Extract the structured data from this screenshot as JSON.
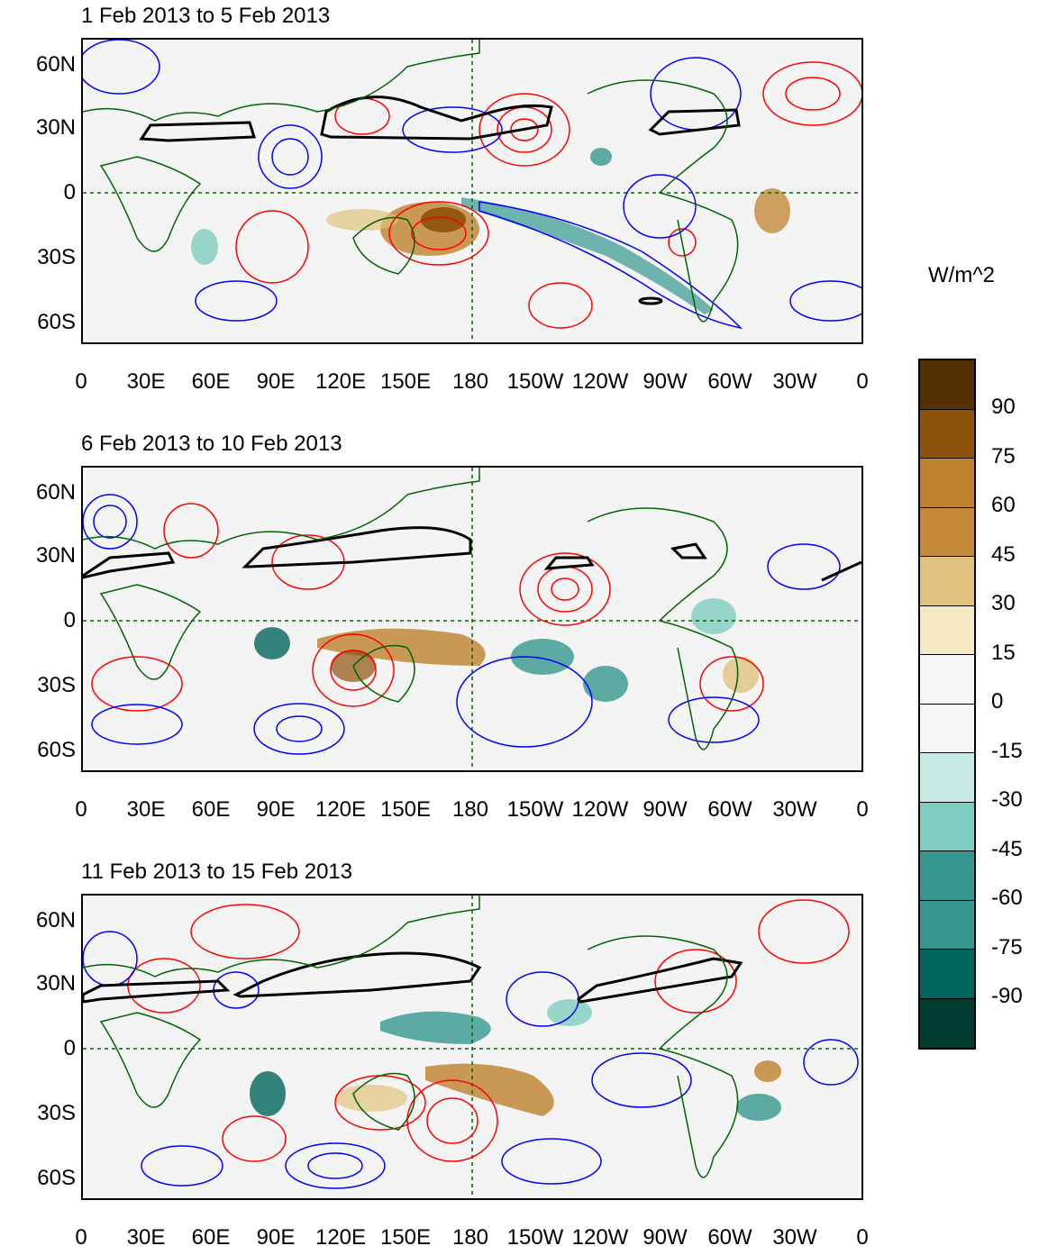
{
  "panels": [
    {
      "title": "1 Feb 2013 to 5 Feb 2013"
    },
    {
      "title": "6 Feb 2013 to 10 Feb 2013"
    },
    {
      "title": "11 Feb 2013 to 15 Feb 2013"
    }
  ],
  "y_ticks": [
    "60N",
    "30N",
    "0",
    "30S",
    "60S"
  ],
  "x_ticks": [
    "0",
    "30E",
    "60E",
    "90E",
    "120E",
    "150E",
    "180",
    "150W",
    "120W",
    "90W",
    "60W",
    "30W",
    "0"
  ],
  "colorbar": {
    "unit": "W/m^2",
    "labels": [
      "90",
      "75",
      "60",
      "45",
      "30",
      "15",
      "0",
      "-15",
      "-30",
      "-45",
      "-60",
      "-75",
      "-90"
    ],
    "colors": [
      "#543005",
      "#8c510a",
      "#bf812d",
      "#c48a3a",
      "#dfc27d",
      "#f6e8c3",
      "#f5f5f5",
      "#f5f5f5",
      "#c7eae5",
      "#80cdc1",
      "#35978f",
      "#35978f",
      "#01665e",
      "#003c30"
    ]
  },
  "contour_colors": {
    "positive": "#ff0000",
    "negative": "#0000ff",
    "jet": "#000000",
    "coast": "#006400"
  }
}
